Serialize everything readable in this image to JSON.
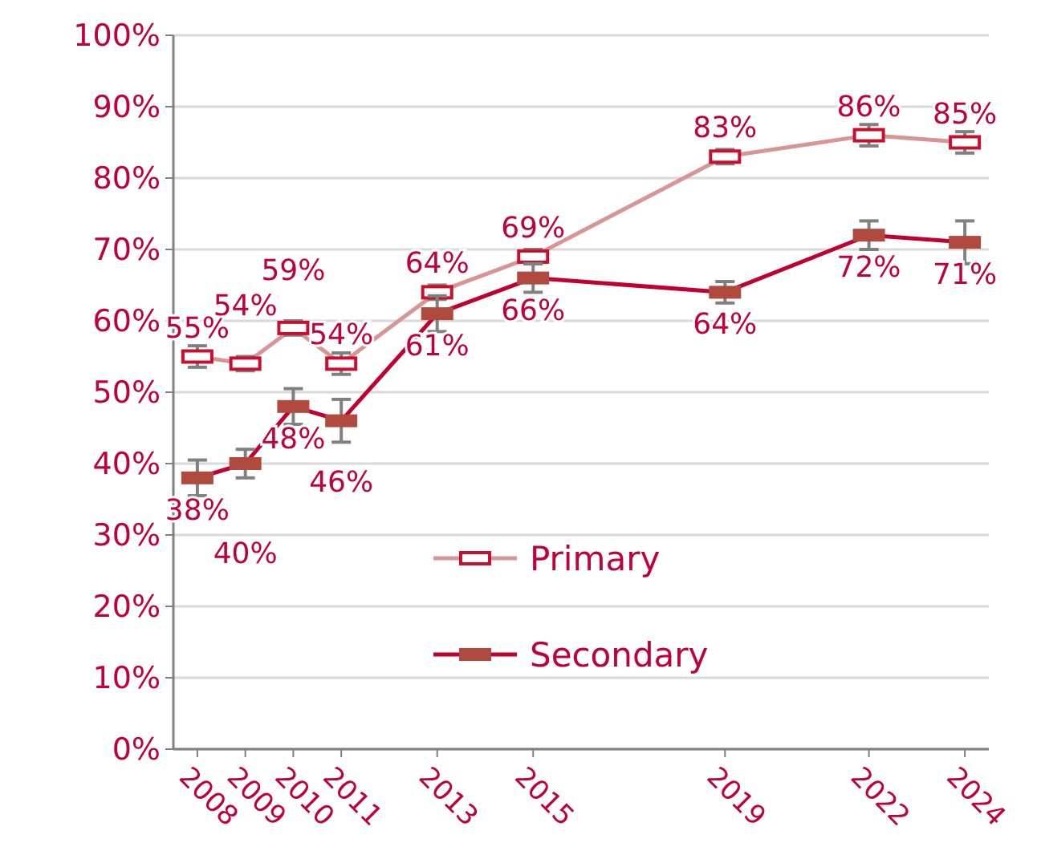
{
  "chart_data": {
    "type": "line",
    "x": [
      2008,
      2009,
      2010,
      2011,
      2013,
      2015,
      2019,
      2022,
      2024
    ],
    "xlim": [
      2007.5,
      2024.5
    ],
    "xticks": [
      2008,
      2009,
      2010,
      2011,
      2013,
      2015,
      2019,
      2022,
      2024
    ],
    "ylim": [
      0,
      100
    ],
    "yticks": [
      {
        "value": 0,
        "label": "0%"
      },
      {
        "value": 10,
        "label": "10%"
      },
      {
        "value": 20,
        "label": "20%"
      },
      {
        "value": 30,
        "label": "30%"
      },
      {
        "value": 40,
        "label": "40%"
      },
      {
        "value": 50,
        "label": "50%"
      },
      {
        "value": 60,
        "label": "60%"
      },
      {
        "value": 70,
        "label": "70%"
      },
      {
        "value": 80,
        "label": "80%"
      },
      {
        "value": 90,
        "label": "90%"
      },
      {
        "value": 100,
        "label": "100%"
      }
    ],
    "grid": "y",
    "legend": "bottom",
    "marker": "square",
    "line_style": "solid",
    "series": [
      {
        "name": "Primary",
        "color": "#d99594",
        "values": [
          55,
          54,
          59,
          54,
          64,
          69,
          83,
          86,
          85
        ],
        "errors": [
          1.5,
          1,
          1,
          1.5,
          1,
          1,
          1,
          1.5,
          1.5
        ],
        "value_labels": [
          "55%",
          "54%",
          "59%",
          "54%",
          "64%",
          "69%",
          "83%",
          "86%",
          "85%"
        ]
      },
      {
        "name": "Secondary",
        "color": "#c0002e",
        "values": [
          38,
          40,
          48,
          46,
          61,
          66,
          64,
          72,
          71
        ],
        "errors": [
          2.5,
          2,
          2.5,
          3,
          2.5,
          2,
          1.5,
          2,
          3
        ],
        "value_labels": [
          "38%",
          "40%",
          "48%",
          "46%",
          "61%",
          "66%",
          "64%",
          "72%",
          "71%"
        ]
      }
    ]
  }
}
